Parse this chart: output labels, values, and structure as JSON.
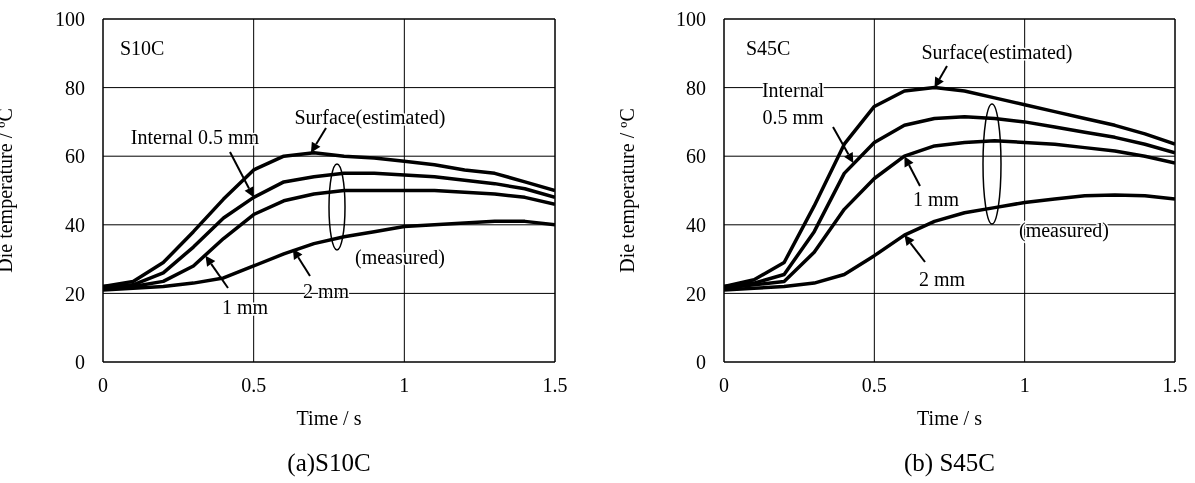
{
  "chart_data": [
    {
      "type": "line",
      "title": "(a)S10C",
      "xlabel": "Time / s",
      "ylabel": "Die temperature / ºC",
      "xlim": [
        0,
        1.5
      ],
      "ylim": [
        0,
        100
      ],
      "xticks": [
        0,
        0.5,
        1,
        1.5
      ],
      "yticks": [
        0,
        20,
        40,
        60,
        80,
        100
      ],
      "grid": true,
      "x": [
        0,
        0.1,
        0.2,
        0.3,
        0.4,
        0.5,
        0.6,
        0.7,
        0.8,
        0.9,
        1.0,
        1.1,
        1.2,
        1.3,
        1.4,
        1.5
      ],
      "series": [
        {
          "color": "#000000",
          "values": [
            22,
            23.5,
            29,
            38,
            47.5,
            56,
            60,
            61,
            60,
            59.5,
            58.5,
            57.5,
            56,
            55,
            52.5,
            50
          ]
        },
        {
          "color": "#000000",
          "values": [
            22,
            22.5,
            26,
            33.5,
            42,
            48,
            52.5,
            54,
            55,
            55,
            54.5,
            54,
            53,
            52,
            50.5,
            48
          ]
        },
        {
          "color": "#000000",
          "values": [
            21.5,
            22,
            23.5,
            28,
            36,
            43,
            47,
            49,
            50,
            50,
            50,
            50,
            49.5,
            49,
            48,
            46
          ]
        },
        {
          "color": "#000000",
          "values": [
            21,
            21.5,
            22,
            23,
            24.5,
            28,
            31.5,
            34.5,
            36.5,
            38,
            39.5,
            40,
            40.5,
            41,
            41,
            40
          ]
        }
      ],
      "annotations": [
        "S10C",
        {
          "text": "Surface(estimated)",
          "x": 0.69,
          "y": 61
        },
        {
          "text": "Internal 0.5 mm",
          "x": 0.5,
          "y": 48
        },
        {
          "text": "1 mm",
          "x": 0.34,
          "y": 31
        },
        {
          "text": "2 mm",
          "x": 0.63,
          "y": 33
        },
        "(measured)"
      ]
    },
    {
      "type": "line",
      "title": "(b) S45C",
      "xlabel": "Time / s",
      "ylabel": "Die temperature / ºC",
      "xlim": [
        0,
        1.5
      ],
      "ylim": [
        0,
        100
      ],
      "xticks": [
        0,
        0.5,
        1,
        1.5
      ],
      "yticks": [
        0,
        20,
        40,
        60,
        80,
        100
      ],
      "grid": true,
      "x": [
        0,
        0.1,
        0.2,
        0.3,
        0.4,
        0.5,
        0.6,
        0.7,
        0.8,
        0.9,
        1.0,
        1.1,
        1.2,
        1.3,
        1.4,
        1.5
      ],
      "series": [
        {
          "color": "#000000",
          "values": [
            22,
            24,
            29,
            45.5,
            63.5,
            74.5,
            79,
            80,
            79,
            77,
            75,
            73,
            71,
            69,
            66.5,
            63.5
          ]
        },
        {
          "color": "#000000",
          "values": [
            22,
            23,
            25.5,
            38,
            55,
            64,
            69,
            71,
            71.5,
            71,
            70,
            68.5,
            67,
            65.5,
            63.5,
            61
          ]
        },
        {
          "color": "#000000",
          "values": [
            21.5,
            22.5,
            23.5,
            32,
            44.5,
            53.5,
            60,
            63,
            64,
            64.5,
            64,
            63.5,
            62.5,
            61.5,
            60,
            58
          ]
        },
        {
          "color": "#000000",
          "values": [
            21,
            21.5,
            22,
            23,
            25.5,
            31,
            37,
            41,
            43.5,
            45,
            46.5,
            47.5,
            48.5,
            48.7,
            48.5,
            47.5
          ]
        }
      ],
      "annotations": [
        "S45C",
        {
          "text": "Surface(estimated)",
          "x": 0.7,
          "y": 80
        },
        {
          "text": "Internal 0.5 mm",
          "x": 0.43,
          "y": 58
        },
        {
          "text": "1 mm",
          "x": 0.6,
          "y": 60
        },
        {
          "text": "2 mm",
          "x": 0.6,
          "y": 37
        },
        "(measured)"
      ]
    }
  ]
}
